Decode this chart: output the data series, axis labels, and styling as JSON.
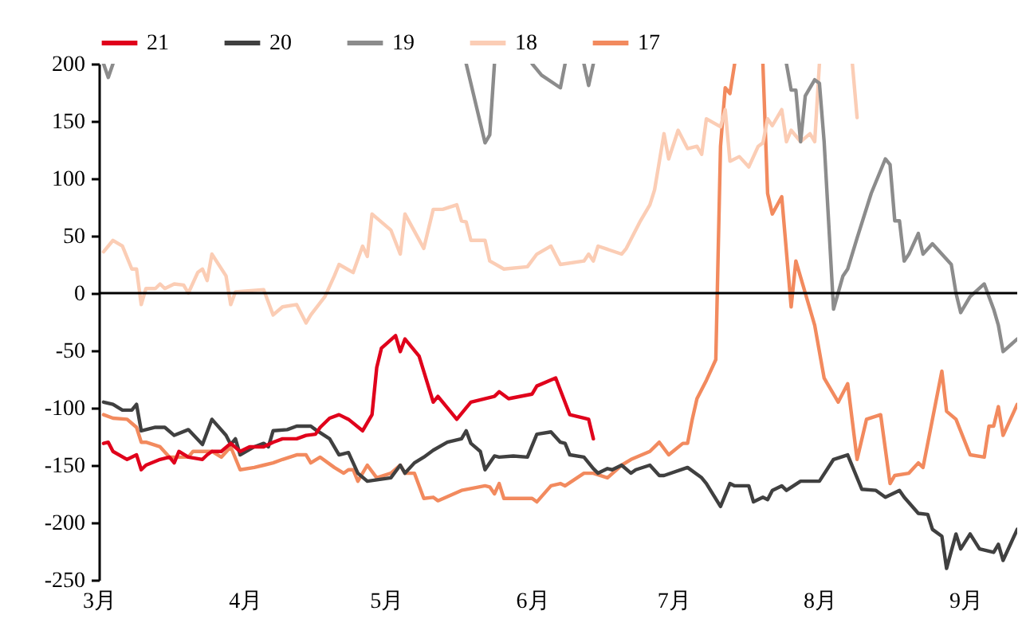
{
  "chart_data": {
    "type": "line",
    "xlim": [
      "--03-01",
      "--09-12"
    ],
    "ylim": [
      -250,
      200
    ],
    "xticks": [
      {
        "value": "--03-01",
        "label": "3月"
      },
      {
        "value": "--04-01",
        "label": "4月"
      },
      {
        "value": "--05-01",
        "label": "5月"
      },
      {
        "value": "--06-01",
        "label": "6月"
      },
      {
        "value": "--07-01",
        "label": "7月"
      },
      {
        "value": "--08-01",
        "label": "8月"
      },
      {
        "value": "--09-01",
        "label": "9月"
      }
    ],
    "yticks": [
      -250,
      -200,
      -150,
      -100,
      -50,
      0,
      50,
      100,
      150,
      200
    ],
    "grid": false,
    "legend": "top",
    "marker": "none",
    "line_style": "solid",
    "ref_lines": [
      {
        "axis": "y",
        "value": 0,
        "color": "#000000"
      }
    ],
    "series": [
      {
        "name": "21",
        "color": "#e0001b",
        "x": [
          "--03-02",
          "--03-03",
          "--03-04",
          "--03-07",
          "--03-09",
          "--03-10",
          "--03-11",
          "--03-14",
          "--03-16",
          "--03-17",
          "--03-18",
          "--03-20",
          "--03-23",
          "--03-24",
          "--03-25",
          "--03-27",
          "--03-29",
          "--03-31",
          "--04-02",
          "--04-05",
          "--04-07",
          "--04-09",
          "--04-12",
          "--04-14",
          "--04-16",
          "--04-17",
          "--04-19",
          "--04-21",
          "--04-23",
          "--04-26",
          "--04-28",
          "--04-29",
          "--04-30",
          "--05-03",
          "--05-04",
          "--05-05",
          "--05-08",
          "--05-11",
          "--05-12",
          "--05-16",
          "--05-19",
          "--05-24",
          "--05-25",
          "--05-27",
          "--06-01",
          "--06-02",
          "--06-06",
          "--06-09",
          "--06-12",
          "--06-13",
          "--06-14"
        ],
        "values": [
          -131,
          -130,
          -138,
          -145,
          -141,
          -154,
          -150,
          -145,
          -143,
          -148,
          -138,
          -143,
          -145,
          -141,
          -138,
          -138,
          -131,
          -138,
          -134,
          -134,
          -130,
          -127,
          -127,
          -124,
          -123,
          -117,
          -109,
          -106,
          -110,
          -120,
          -106,
          -65,
          -48,
          -37,
          -51,
          -40,
          -55,
          -95,
          -90,
          -110,
          -95,
          -90,
          -86,
          -92,
          -88,
          -81,
          -74,
          -106,
          -109,
          -110,
          -127
        ]
      },
      {
        "name": "20",
        "color": "#404040",
        "x": [
          "--03-02",
          "--03-04",
          "--03-06",
          "--03-08",
          "--03-09",
          "--03-10",
          "--03-13",
          "--03-15",
          "--03-17",
          "--03-20",
          "--03-23",
          "--03-25",
          "--03-28",
          "--03-29",
          "--03-30",
          "--03-31",
          "--04-03",
          "--04-05",
          "--04-06",
          "--04-07",
          "--04-10",
          "--04-12",
          "--04-15",
          "--04-16",
          "--04-19",
          "--04-21",
          "--04-23",
          "--04-25",
          "--04-27",
          "--05-02",
          "--05-04",
          "--05-05",
          "--05-07",
          "--05-09",
          "--05-11",
          "--05-14",
          "--05-17",
          "--05-18",
          "--05-19",
          "--05-21",
          "--05-22",
          "--05-24",
          "--05-25",
          "--05-28",
          "--05-31",
          "--06-02",
          "--06-05",
          "--06-07",
          "--06-08",
          "--06-09",
          "--06-12",
          "--06-14",
          "--06-15",
          "--06-17",
          "--06-18",
          "--06-20",
          "--06-22",
          "--06-23",
          "--06-26",
          "--06-28",
          "--06-29",
          "--07-04",
          "--07-07",
          "--07-08",
          "--07-11",
          "--07-13",
          "--07-14",
          "--07-17",
          "--07-18",
          "--07-20",
          "--07-21",
          "--07-22",
          "--07-24",
          "--07-25",
          "--07-28",
          "--08-01",
          "--08-04",
          "--08-07",
          "--08-10",
          "--08-13",
          "--08-15",
          "--08-18",
          "--08-19",
          "--08-22",
          "--08-24",
          "--08-25",
          "--08-27",
          "--08-28",
          "--08-30",
          "--08-31",
          "--09-02",
          "--09-04",
          "--09-07",
          "--09-08",
          "--09-09",
          "--09-12"
        ],
        "values": [
          -95,
          -97,
          -102,
          -102,
          -97,
          -120,
          -117,
          -117,
          -124,
          -119,
          -132,
          -110,
          -124,
          -132,
          -127,
          -141,
          -134,
          -131,
          -134,
          -120,
          -119,
          -116,
          -116,
          -119,
          -127,
          -141,
          -139,
          -157,
          -164,
          -161,
          -150,
          -157,
          -148,
          -143,
          -137,
          -130,
          -127,
          -120,
          -131,
          -138,
          -154,
          -142,
          -143,
          -142,
          -143,
          -123,
          -121,
          -130,
          -131,
          -141,
          -143,
          -153,
          -157,
          -153,
          -154,
          -150,
          -157,
          -154,
          -150,
          -159,
          -159,
          -152,
          -161,
          -166,
          -186,
          -166,
          -168,
          -168,
          -182,
          -178,
          -180,
          -172,
          -168,
          -172,
          -164,
          -164,
          -145,
          -141,
          -171,
          -172,
          -178,
          -172,
          -178,
          -192,
          -193,
          -206,
          -212,
          -240,
          -210,
          -223,
          -210,
          -223,
          -226,
          -219,
          -233,
          -206
        ]
      },
      {
        "name": "19",
        "color": "#8c8c8c",
        "x": [
          "--03-02",
          "--03-03",
          "--03-04",
          "--03-10",
          "--05-18",
          "--05-22",
          "--05-23",
          "--05-24",
          "--05-28",
          "--06-01",
          "--06-03",
          "--06-07",
          "--06-08",
          "--06-10",
          "--06-12",
          "--06-13",
          "--06-14",
          "--07-01",
          "--07-25",
          "--07-26",
          "--07-27",
          "--07-28",
          "--07-29",
          "--07-31",
          "--08-01",
          "--08-02",
          "--08-04",
          "--08-06",
          "--08-07",
          "--08-09",
          "--08-12",
          "--08-15",
          "--08-16",
          "--08-17",
          "--08-18",
          "--08-19",
          "--08-20",
          "--08-22",
          "--08-23",
          "--08-25",
          "--08-29",
          "--08-30",
          "--08-31",
          "--09-02",
          "--09-05",
          "--09-07",
          "--09-08",
          "--09-09",
          "--09-12"
        ],
        "values": [
          200,
          188,
          200,
          null,
          200,
          131,
          138,
          200,
          null,
          200,
          190,
          179,
          200,
          null,
          200,
          181,
          200,
          null,
          200,
          177,
          177,
          132,
          172,
          186,
          183,
          132,
          -14,
          15,
          21,
          48,
          87,
          117,
          112,
          63,
          63,
          28,
          34,
          52,
          34,
          43,
          25,
          0,
          -17,
          -3,
          8,
          -14,
          -28,
          -51,
          -40
        ]
      },
      {
        "name": "18",
        "color": "#fbcdb5",
        "x": [
          "--03-02",
          "--03-04",
          "--03-06",
          "--03-08",
          "--03-09",
          "--03-10",
          "--03-11",
          "--03-13",
          "--03-14",
          "--03-15",
          "--03-17",
          "--03-19",
          "--03-20",
          "--03-22",
          "--03-23",
          "--03-24",
          "--03-25",
          "--03-28",
          "--03-29",
          "--03-30",
          "--04-05",
          "--04-07",
          "--04-09",
          "--04-12",
          "--04-14",
          "--04-15",
          "--04-18",
          "--04-20",
          "--04-21",
          "--04-24",
          "--04-26",
          "--04-27",
          "--04-28",
          "--05-02",
          "--05-04",
          "--05-05",
          "--05-09",
          "--05-11",
          "--05-13",
          "--05-16",
          "--05-17",
          "--05-18",
          "--05-19",
          "--05-22",
          "--05-23",
          "--05-26",
          "--05-31",
          "--06-02",
          "--06-05",
          "--06-07",
          "--06-12",
          "--06-13",
          "--06-14",
          "--06-15",
          "--06-20",
          "--06-21",
          "--06-24",
          "--06-26",
          "--06-27",
          "--06-29",
          "--06-30",
          "--07-02",
          "--07-04",
          "--07-06",
          "--07-07",
          "--07-08",
          "--07-11",
          "--07-12",
          "--07-13",
          "--07-15",
          "--07-17",
          "--07-19",
          "--07-20",
          "--07-21",
          "--07-22",
          "--07-24",
          "--07-25",
          "--07-26",
          "--07-28",
          "--07-30",
          "--07-31",
          "--08-01",
          "--08-05",
          "--08-08",
          "--08-09"
        ],
        "values": [
          36,
          46,
          41,
          21,
          21,
          -10,
          4,
          4,
          8,
          4,
          8,
          7,
          0,
          18,
          21,
          11,
          34,
          15,
          -10,
          1,
          3,
          -19,
          -12,
          -10,
          -26,
          -19,
          -3,
          15,
          25,
          18,
          41,
          32,
          69,
          55,
          34,
          69,
          39,
          73,
          73,
          77,
          63,
          62,
          46,
          46,
          28,
          21,
          23,
          34,
          41,
          25,
          28,
          34,
          28,
          41,
          34,
          39,
          63,
          77,
          90,
          139,
          117,
          142,
          126,
          128,
          121,
          152,
          145,
          160,
          115,
          119,
          110,
          128,
          131,
          152,
          146,
          160,
          132,
          142,
          132,
          139,
          132,
          200,
          null,
          200,
          153
        ]
      },
      {
        "name": "17",
        "color": "#f28a5e",
        "x": [
          "--03-02",
          "--03-04",
          "--03-07",
          "--03-09",
          "--03-10",
          "--03-11",
          "--03-14",
          "--03-16",
          "--03-18",
          "--03-20",
          "--03-21",
          "--03-25",
          "--03-27",
          "--03-29",
          "--03-31",
          "--04-03",
          "--04-05",
          "--04-07",
          "--04-09",
          "--04-12",
          "--04-14",
          "--04-15",
          "--04-17",
          "--04-20",
          "--04-22",
          "--04-23",
          "--04-24",
          "--04-25",
          "--04-27",
          "--04-29",
          "--05-02",
          "--05-04",
          "--05-05",
          "--05-07",
          "--05-09",
          "--05-11",
          "--05-12",
          "--05-17",
          "--05-22",
          "--05-23",
          "--05-24",
          "--05-25",
          "--05-26",
          "--06-01",
          "--06-02",
          "--06-05",
          "--06-07",
          "--06-08",
          "--06-12",
          "--06-14",
          "--06-17",
          "--06-20",
          "--06-22",
          "--06-26",
          "--06-28",
          "--06-30",
          "--07-03",
          "--07-04",
          "--07-05",
          "--07-06",
          "--07-08",
          "--07-10",
          "--07-11",
          "--07-12",
          "--07-13",
          "--07-14",
          "--07-18",
          "--07-20",
          "--07-21",
          "--07-22",
          "--07-24",
          "--07-26",
          "--07-27",
          "--07-31",
          "--08-02",
          "--08-05",
          "--08-07",
          "--08-09",
          "--08-11",
          "--08-14",
          "--08-16",
          "--08-17",
          "--08-20",
          "--08-22",
          "--08-23",
          "--08-27",
          "--08-28",
          "--08-30",
          "--09-02",
          "--09-05",
          "--09-06",
          "--09-07",
          "--09-08",
          "--09-09",
          "--09-12"
        ],
        "values": [
          -106,
          -109,
          -110,
          -117,
          -130,
          -130,
          -134,
          -143,
          -143,
          -143,
          -138,
          -138,
          -143,
          -134,
          -154,
          -152,
          -150,
          -148,
          -145,
          -141,
          -141,
          -148,
          -143,
          -152,
          -157,
          -154,
          -154,
          -164,
          -150,
          -161,
          -157,
          -150,
          -157,
          -157,
          -179,
          -178,
          -181,
          -172,
          -168,
          -169,
          -175,
          -166,
          -179,
          -179,
          -182,
          -168,
          -166,
          -168,
          -157,
          -157,
          -161,
          -150,
          -145,
          -138,
          -130,
          -141,
          -131,
          -131,
          -110,
          -92,
          -76,
          -58,
          128,
          179,
          174,
          200,
          null,
          200,
          87,
          69,
          84,
          -12,
          28,
          -28,
          -74,
          -95,
          -79,
          -145,
          -110,
          -106,
          -166,
          -159,
          -157,
          -148,
          -152,
          -68,
          -103,
          -110,
          -141,
          -143,
          -116,
          -116,
          -99,
          -124,
          -97
        ]
      }
    ]
  }
}
